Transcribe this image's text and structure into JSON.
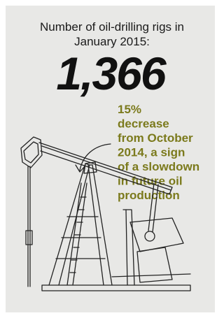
{
  "heading": {
    "lines": [
      "Number of oil-drilling rigs in",
      "January 2015:"
    ]
  },
  "figure": "1,366",
  "callout": {
    "lines": [
      "15%",
      "decrease",
      "from October",
      "2014, a sign",
      "of a slowdown",
      "in future oil",
      "production"
    ]
  }
}
